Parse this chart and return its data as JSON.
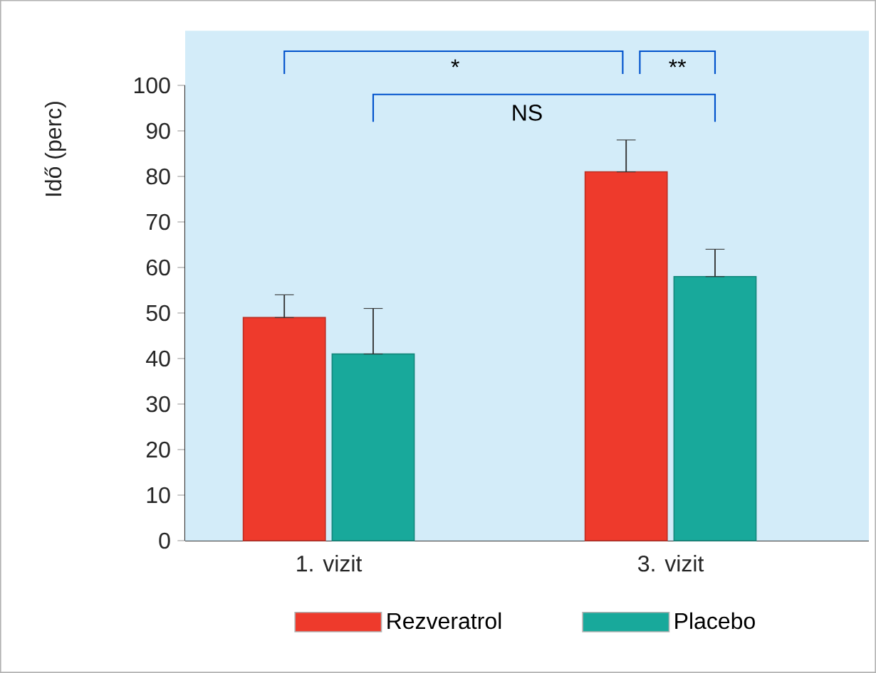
{
  "chart_data": {
    "type": "bar",
    "ylabel": "Idő (perc)",
    "categories": [
      "1. vizit",
      "3. vizit"
    ],
    "series": [
      {
        "name": "Rezveratrol",
        "color": "#ee3a2c",
        "values": [
          49,
          81
        ],
        "errors": [
          [
            49,
            54
          ],
          [
            81,
            88
          ]
        ]
      },
      {
        "name": "Placebo",
        "color": "#18a99b",
        "values": [
          41,
          58
        ],
        "errors": [
          [
            41,
            51
          ],
          [
            58,
            64
          ]
        ]
      }
    ],
    "ylim": [
      0,
      100
    ],
    "yticks": [
      0,
      10,
      20,
      30,
      40,
      50,
      60,
      70,
      80,
      90,
      100
    ],
    "legend": "bottom",
    "annotations": [
      "*",
      "**",
      "NS"
    ]
  }
}
